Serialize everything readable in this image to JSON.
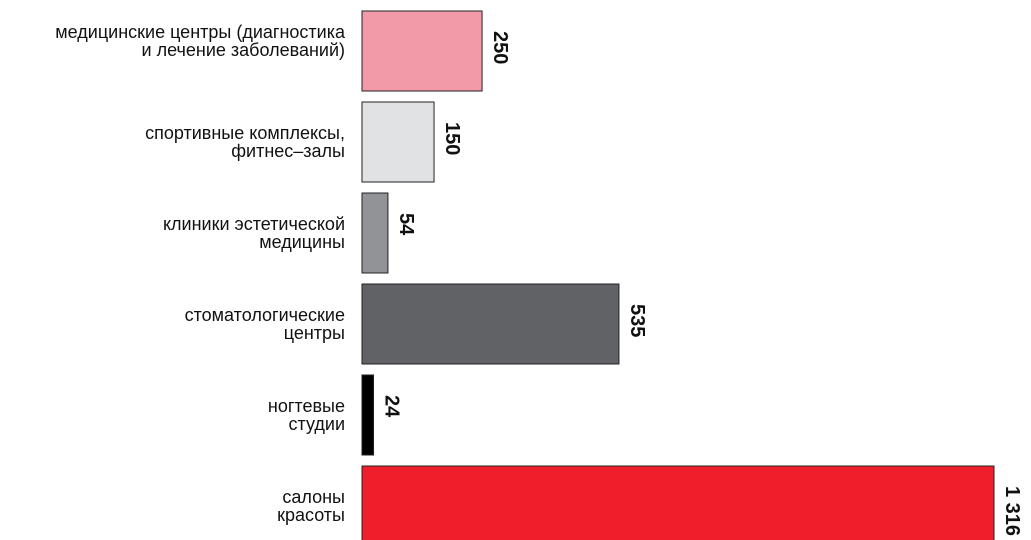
{
  "chart_data": {
    "type": "bar",
    "orientation": "horizontal",
    "categories": [
      [
        "медицинские центры (диагностика",
        "и лечение заболеваний)"
      ],
      [
        "спортивные комплексы,",
        "фитнес–залы"
      ],
      [
        "клиники эстетической",
        "медицины"
      ],
      [
        "стоматологические",
        "центры"
      ],
      [
        "ногтевые",
        "студии"
      ],
      [
        "салоны",
        "красоты"
      ]
    ],
    "values": [
      250,
      150,
      54,
      535,
      24,
      1316
    ],
    "value_labels": [
      "250",
      "150",
      "54",
      "535",
      "24",
      "1 316"
    ],
    "colors": [
      "#f29aa8",
      "#e1e2e4",
      "#929397",
      "#616265",
      "#000000",
      "#ee1e2b"
    ],
    "xlim": [
      0,
      1316
    ],
    "grid": false,
    "legend": "none"
  }
}
